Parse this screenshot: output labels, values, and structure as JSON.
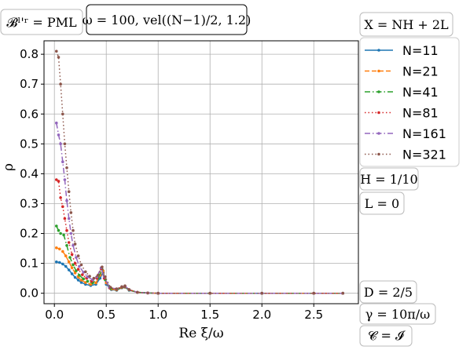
{
  "chart_data": {
    "type": "line",
    "title": "",
    "xlabel": "Re ξ/ω",
    "ylabel": "ρ",
    "xlim": [
      -0.1,
      2.93
    ],
    "ylim": [
      -0.035,
      0.845
    ],
    "xticks": [
      0.0,
      0.5,
      1.0,
      1.5,
      2.0,
      2.5
    ],
    "xtick_labels": [
      "0.0",
      "0.5",
      "1.0",
      "1.5",
      "2.0",
      "2.5"
    ],
    "yticks": [
      0.0,
      0.1,
      0.2,
      0.3,
      0.4,
      0.5,
      0.6,
      0.7,
      0.8
    ],
    "ytick_labels": [
      "0.0",
      "0.1",
      "0.2",
      "0.3",
      "0.4",
      "0.5",
      "0.6",
      "0.7",
      "0.8"
    ],
    "grid": true,
    "legend_placement": "outside-right",
    "annotations": {
      "top_left": "𝓑ˡ'ʳ = PML",
      "top_center": "ω = 100, vel((N−1)/2, 1.2)",
      "right_top": "X = NH + 2L",
      "right_h": "H = 1/10",
      "right_l": "L = 0",
      "right_d": "D = 2/5",
      "right_gamma": "γ = 10π/ω",
      "right_c": "𝓒 = 𝓘"
    },
    "series": [
      {
        "name": "N=11",
        "color": "#1f77b4",
        "style": "solid",
        "marker": "dot",
        "points": [
          [
            0.02,
            0.105
          ],
          [
            0.05,
            0.103
          ],
          [
            0.08,
            0.098
          ],
          [
            0.11,
            0.09
          ],
          [
            0.14,
            0.078
          ],
          [
            0.17,
            0.065
          ],
          [
            0.2,
            0.053
          ],
          [
            0.23,
            0.044
          ],
          [
            0.26,
            0.036
          ],
          [
            0.3,
            0.03
          ],
          [
            0.35,
            0.026
          ],
          [
            0.4,
            0.03
          ],
          [
            0.44,
            0.05
          ],
          [
            0.47,
            0.07
          ],
          [
            0.5,
            0.03
          ],
          [
            0.55,
            0.012
          ],
          [
            0.6,
            0.01
          ],
          [
            0.65,
            0.018
          ],
          [
            0.68,
            0.02
          ],
          [
            0.72,
            0.01
          ],
          [
            0.8,
            0.003
          ],
          [
            0.9,
            0.001
          ],
          [
            1.0,
            0.0
          ],
          [
            1.5,
            0.0
          ],
          [
            2.0,
            0.0
          ],
          [
            2.5,
            0.0
          ],
          [
            2.78,
            0.0
          ]
        ]
      },
      {
        "name": "N=21",
        "color": "#ff7f0e",
        "style": "dashed",
        "marker": "dot",
        "points": [
          [
            0.02,
            0.152
          ],
          [
            0.05,
            0.148
          ],
          [
            0.08,
            0.14
          ],
          [
            0.11,
            0.125
          ],
          [
            0.14,
            0.105
          ],
          [
            0.17,
            0.085
          ],
          [
            0.2,
            0.068
          ],
          [
            0.23,
            0.054
          ],
          [
            0.26,
            0.044
          ],
          [
            0.3,
            0.036
          ],
          [
            0.35,
            0.03
          ],
          [
            0.4,
            0.035
          ],
          [
            0.44,
            0.06
          ],
          [
            0.47,
            0.075
          ],
          [
            0.5,
            0.035
          ],
          [
            0.55,
            0.014
          ],
          [
            0.6,
            0.011
          ],
          [
            0.65,
            0.019
          ],
          [
            0.68,
            0.021
          ],
          [
            0.72,
            0.011
          ],
          [
            0.8,
            0.003
          ],
          [
            0.9,
            0.001
          ],
          [
            1.0,
            0.0
          ],
          [
            1.5,
            0.0
          ],
          [
            2.0,
            0.0
          ],
          [
            2.5,
            0.0
          ],
          [
            2.78,
            0.0
          ]
        ]
      },
      {
        "name": "N=41",
        "color": "#2ca02c",
        "style": "dashdot",
        "marker": "dot",
        "points": [
          [
            0.02,
            0.225
          ],
          [
            0.04,
            0.21
          ],
          [
            0.06,
            0.2
          ],
          [
            0.09,
            0.195
          ],
          [
            0.12,
            0.16
          ],
          [
            0.15,
            0.12
          ],
          [
            0.18,
            0.095
          ],
          [
            0.21,
            0.075
          ],
          [
            0.24,
            0.06
          ],
          [
            0.28,
            0.048
          ],
          [
            0.32,
            0.04
          ],
          [
            0.37,
            0.035
          ],
          [
            0.42,
            0.05
          ],
          [
            0.46,
            0.08
          ],
          [
            0.49,
            0.045
          ],
          [
            0.54,
            0.016
          ],
          [
            0.6,
            0.012
          ],
          [
            0.65,
            0.02
          ],
          [
            0.68,
            0.022
          ],
          [
            0.72,
            0.011
          ],
          [
            0.8,
            0.003
          ],
          [
            0.9,
            0.001
          ],
          [
            1.0,
            0.0
          ],
          [
            1.5,
            0.0
          ],
          [
            2.0,
            0.0
          ],
          [
            2.5,
            0.0
          ],
          [
            2.78,
            0.0
          ]
        ]
      },
      {
        "name": "N=81",
        "color": "#d62728",
        "style": "dotted",
        "marker": "dot",
        "points": [
          [
            0.02,
            0.38
          ],
          [
            0.04,
            0.375
          ],
          [
            0.06,
            0.32
          ],
          [
            0.08,
            0.29
          ],
          [
            0.1,
            0.25
          ],
          [
            0.12,
            0.21
          ],
          [
            0.14,
            0.17
          ],
          [
            0.17,
            0.13
          ],
          [
            0.2,
            0.1
          ],
          [
            0.23,
            0.08
          ],
          [
            0.27,
            0.062
          ],
          [
            0.31,
            0.05
          ],
          [
            0.36,
            0.04
          ],
          [
            0.41,
            0.05
          ],
          [
            0.45,
            0.082
          ],
          [
            0.48,
            0.05
          ],
          [
            0.53,
            0.018
          ],
          [
            0.6,
            0.013
          ],
          [
            0.65,
            0.021
          ],
          [
            0.68,
            0.023
          ],
          [
            0.72,
            0.012
          ],
          [
            0.8,
            0.003
          ],
          [
            0.9,
            0.001
          ],
          [
            1.0,
            0.0
          ],
          [
            1.5,
            0.0
          ],
          [
            2.0,
            0.0
          ],
          [
            2.5,
            0.0
          ],
          [
            2.78,
            0.0
          ]
        ]
      },
      {
        "name": "N=161",
        "color": "#9467bd",
        "style": "dashdot",
        "marker": "dot",
        "points": [
          [
            0.02,
            0.57
          ],
          [
            0.04,
            0.53
          ],
          [
            0.06,
            0.5
          ],
          [
            0.08,
            0.44
          ],
          [
            0.1,
            0.38
          ],
          [
            0.12,
            0.31
          ],
          [
            0.14,
            0.25
          ],
          [
            0.16,
            0.2
          ],
          [
            0.18,
            0.16
          ],
          [
            0.21,
            0.12
          ],
          [
            0.24,
            0.09
          ],
          [
            0.28,
            0.07
          ],
          [
            0.32,
            0.055
          ],
          [
            0.37,
            0.045
          ],
          [
            0.41,
            0.055
          ],
          [
            0.45,
            0.085
          ],
          [
            0.48,
            0.055
          ],
          [
            0.53,
            0.02
          ],
          [
            0.6,
            0.014
          ],
          [
            0.65,
            0.022
          ],
          [
            0.68,
            0.024
          ],
          [
            0.72,
            0.012
          ],
          [
            0.8,
            0.003
          ],
          [
            0.9,
            0.001
          ],
          [
            1.0,
            0.0
          ],
          [
            1.5,
            0.0
          ],
          [
            2.0,
            0.0
          ],
          [
            2.5,
            0.0
          ],
          [
            2.78,
            0.0
          ]
        ]
      },
      {
        "name": "N=321",
        "color": "#8c564b",
        "style": "dotted",
        "marker": "dot",
        "points": [
          [
            0.02,
            0.81
          ],
          [
            0.04,
            0.79
          ],
          [
            0.06,
            0.7
          ],
          [
            0.08,
            0.6
          ],
          [
            0.1,
            0.5
          ],
          [
            0.12,
            0.42
          ],
          [
            0.14,
            0.34
          ],
          [
            0.16,
            0.27
          ],
          [
            0.18,
            0.21
          ],
          [
            0.2,
            0.165
          ],
          [
            0.23,
            0.125
          ],
          [
            0.26,
            0.095
          ],
          [
            0.3,
            0.072
          ],
          [
            0.34,
            0.057
          ],
          [
            0.38,
            0.05
          ],
          [
            0.42,
            0.06
          ],
          [
            0.46,
            0.088
          ],
          [
            0.49,
            0.055
          ],
          [
            0.54,
            0.02
          ],
          [
            0.6,
            0.015
          ],
          [
            0.65,
            0.022
          ],
          [
            0.68,
            0.025
          ],
          [
            0.72,
            0.012
          ],
          [
            0.8,
            0.003
          ],
          [
            0.9,
            0.001
          ],
          [
            1.0,
            0.0
          ],
          [
            1.5,
            0.0
          ],
          [
            2.0,
            0.0
          ],
          [
            2.5,
            0.0
          ],
          [
            2.78,
            0.0
          ]
        ]
      }
    ]
  }
}
